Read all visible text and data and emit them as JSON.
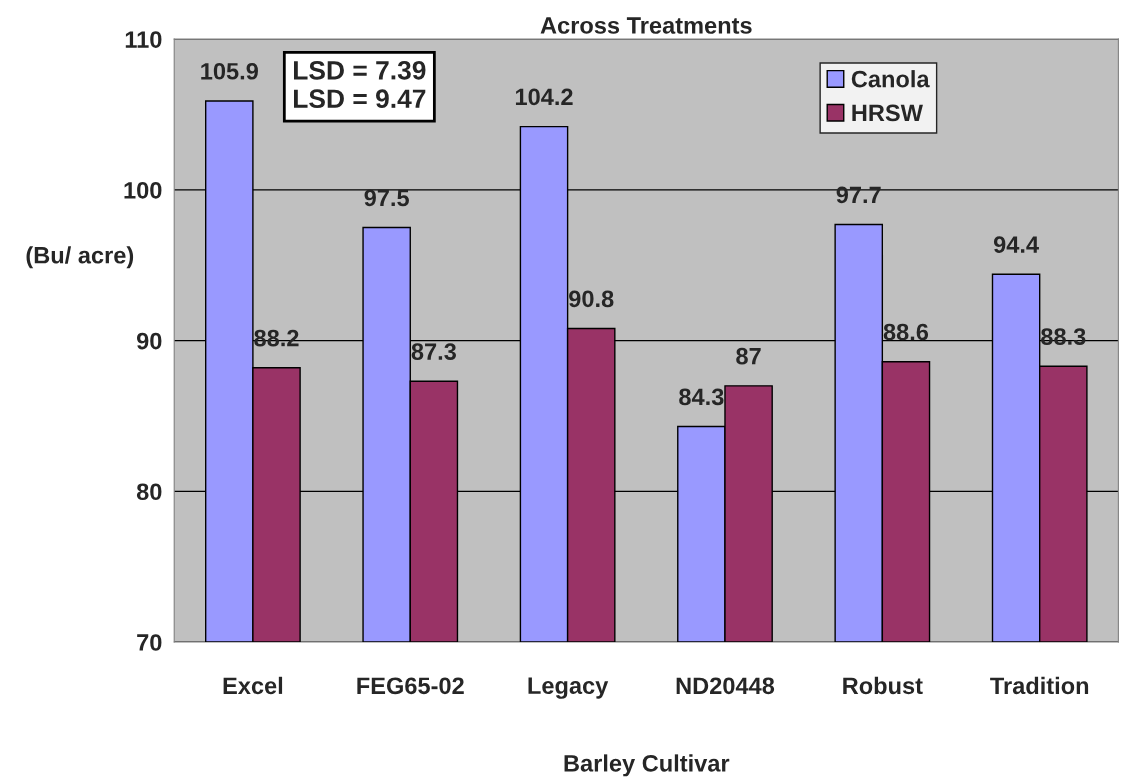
{
  "chart_data": {
    "type": "bar",
    "title": "Across Treatments",
    "xlabel": "Barley Cultivar",
    "ylabel": "(Bu/ acre)",
    "categories": [
      "Excel",
      "FEG65-02",
      "Legacy",
      "ND20448",
      "Robust",
      "Tradition"
    ],
    "series": [
      {
        "name": "Canola",
        "color": "#9999ff",
        "values": [
          105.9,
          97.5,
          104.2,
          84.3,
          97.7,
          94.4
        ]
      },
      {
        "name": "HRSW",
        "color": "#993366",
        "values": [
          88.2,
          87.3,
          90.8,
          87,
          88.6,
          88.3
        ]
      }
    ],
    "ylim": [
      70,
      110
    ],
    "yticks": [
      70,
      80,
      90,
      100,
      110
    ],
    "grid": "y",
    "legend": "top right",
    "data_labels": true,
    "annotations": [
      "LSD = 7.39\nLSD = 9.47"
    ]
  }
}
